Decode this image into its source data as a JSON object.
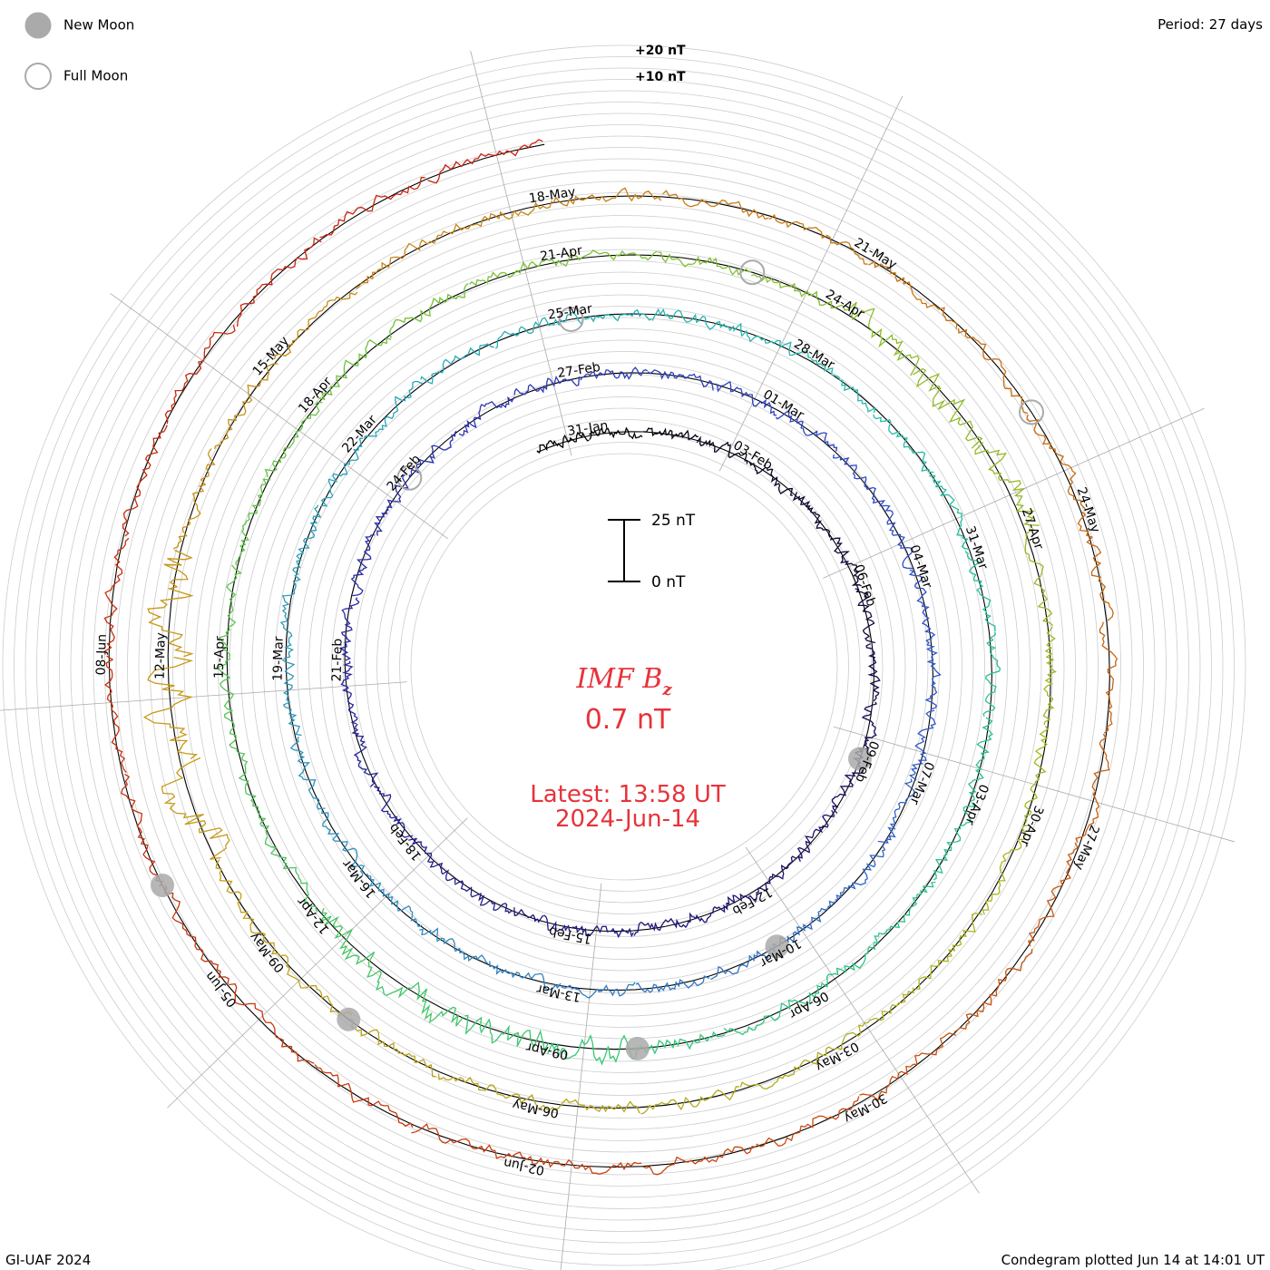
{
  "legend": {
    "new_moon": "New Moon",
    "full_moon": "Full Moon"
  },
  "period": "Period: 27 days",
  "credit": "GI-UAF 2024",
  "plotted": "Condegram plotted Jun 14 at 14:01 UT",
  "chart_data": {
    "type": "line",
    "subtype": "spiral-condegram",
    "title": "IMF B",
    "title_subscript": "z",
    "current_value": "0.7 nT",
    "latest_label": "Latest: 13:58 UT",
    "latest_date": "2024-Jun-14",
    "scale_bar": {
      "top_label": "25 nT",
      "bottom_label": "0 nT",
      "value_nT": 25
    },
    "reference_ticks": [
      "+20 nT",
      "+10 nT"
    ],
    "period_days": 27,
    "date_range": [
      "2024-Jan-30",
      "2024-Jun-14"
    ],
    "colors": {
      "inner": "#000000",
      "outer": "#c8200f",
      "gradient": [
        "#000000",
        "#1a0f6a",
        "#2a2aa8",
        "#3050c8",
        "#2f8fbf",
        "#25b8b0",
        "#2fc77a",
        "#6fc23a",
        "#a8b51e",
        "#c79a18",
        "#c8700f",
        "#c83a0f",
        "#c8200f"
      ],
      "moon_fill": "#aaaaaa",
      "annotation_red": "#e8323a"
    },
    "cycle_labels": [
      {
        "cycle": 0,
        "labels": [
          "31-Jan",
          "03-Feb",
          "06-Feb",
          "09-Feb",
          "12-Feb",
          "15-Feb",
          "18-Feb",
          "21-Feb",
          "24-Feb"
        ]
      },
      {
        "cycle": 1,
        "labels": [
          "27-Feb",
          "01-Mar",
          "04-Mar",
          "07-Mar",
          "10-Mar",
          "13-Mar",
          "16-Mar",
          "19-Mar",
          "22-Mar"
        ]
      },
      {
        "cycle": 2,
        "labels": [
          "25-Mar",
          "28-Mar",
          "31-Mar",
          "03-Apr",
          "06-Apr",
          "09-Apr",
          "12-Apr",
          "15-Apr",
          "18-Apr"
        ]
      },
      {
        "cycle": 3,
        "labels": [
          "21-Apr",
          "24-Apr",
          "27-Apr",
          "30-Apr",
          "03-May",
          "06-May",
          "09-May",
          "12-May",
          "15-May"
        ]
      },
      {
        "cycle": 4,
        "labels": [
          "18-May",
          "21-May",
          "24-May",
          "27-May",
          "30-May",
          "02-Jun",
          "05-Jun",
          "08-Jun"
        ]
      }
    ],
    "moons": {
      "new": [
        "2024-Feb-09",
        "2024-Mar-10",
        "2024-Apr-08",
        "2024-May-08",
        "2024-Jun-06"
      ],
      "full": [
        "2024-Feb-24",
        "2024-Mar-25",
        "2024-Apr-23",
        "2024-May-23"
      ]
    }
  }
}
